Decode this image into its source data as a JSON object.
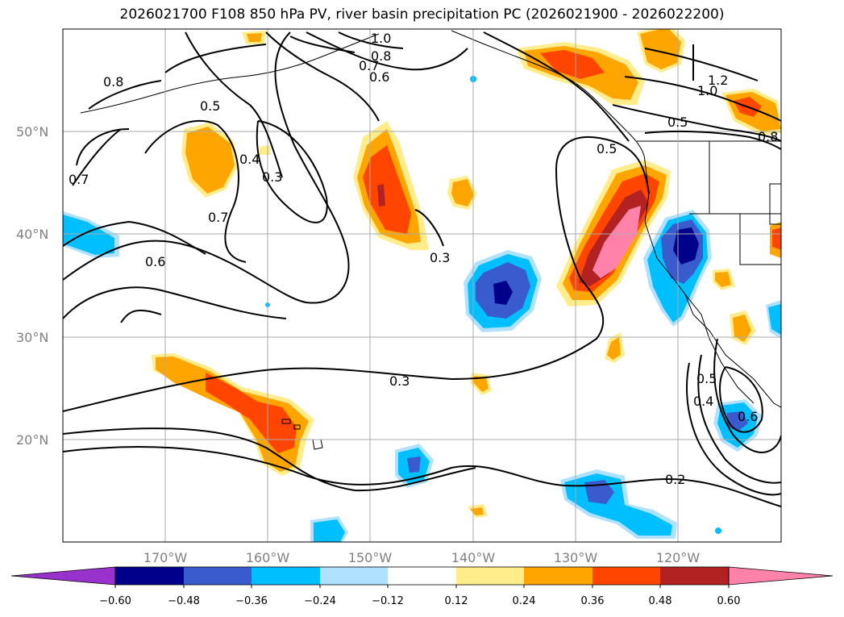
{
  "title": "2026021700 F108 850 hPa PV, river basin precipitation PC (2026021900 - 2026022200)",
  "map": {
    "lon_labels": [
      "170°W",
      "160°W",
      "150°W",
      "140°W",
      "130°W",
      "120°W"
    ],
    "lat_labels": [
      "50°N",
      "40°N",
      "30°N",
      "20°N"
    ],
    "contour_labels": [
      "1.0",
      "0.8",
      "0.7",
      "0.6",
      "0.8",
      "0.5",
      "0.4",
      "0.3",
      "0.7",
      "0.7",
      "0.6",
      "0.3",
      "0.3",
      "0.2",
      "0.5",
      "0.4",
      "0.6",
      "1.2",
      "1.0",
      "0.5",
      "0.8",
      "0.5"
    ],
    "colors": {
      "neg_060": "#9932cc",
      "neg_048": "#00008b",
      "neg_036": "#3a5bcd",
      "neg_024": "#00bfff",
      "neg_012": "#b0e2ff",
      "zero": "#ffffff",
      "pos_012": "#ffec8b",
      "pos_024": "#ffa500",
      "pos_036": "#ff4500",
      "pos_048": "#b22222",
      "pos_060": "#ff82ab"
    }
  },
  "colorbar": {
    "ticks": [
      "−0.60",
      "−0.48",
      "−0.36",
      "−0.24",
      "−0.12",
      "0.12",
      "0.24",
      "0.36",
      "0.48",
      "0.60"
    ]
  }
}
